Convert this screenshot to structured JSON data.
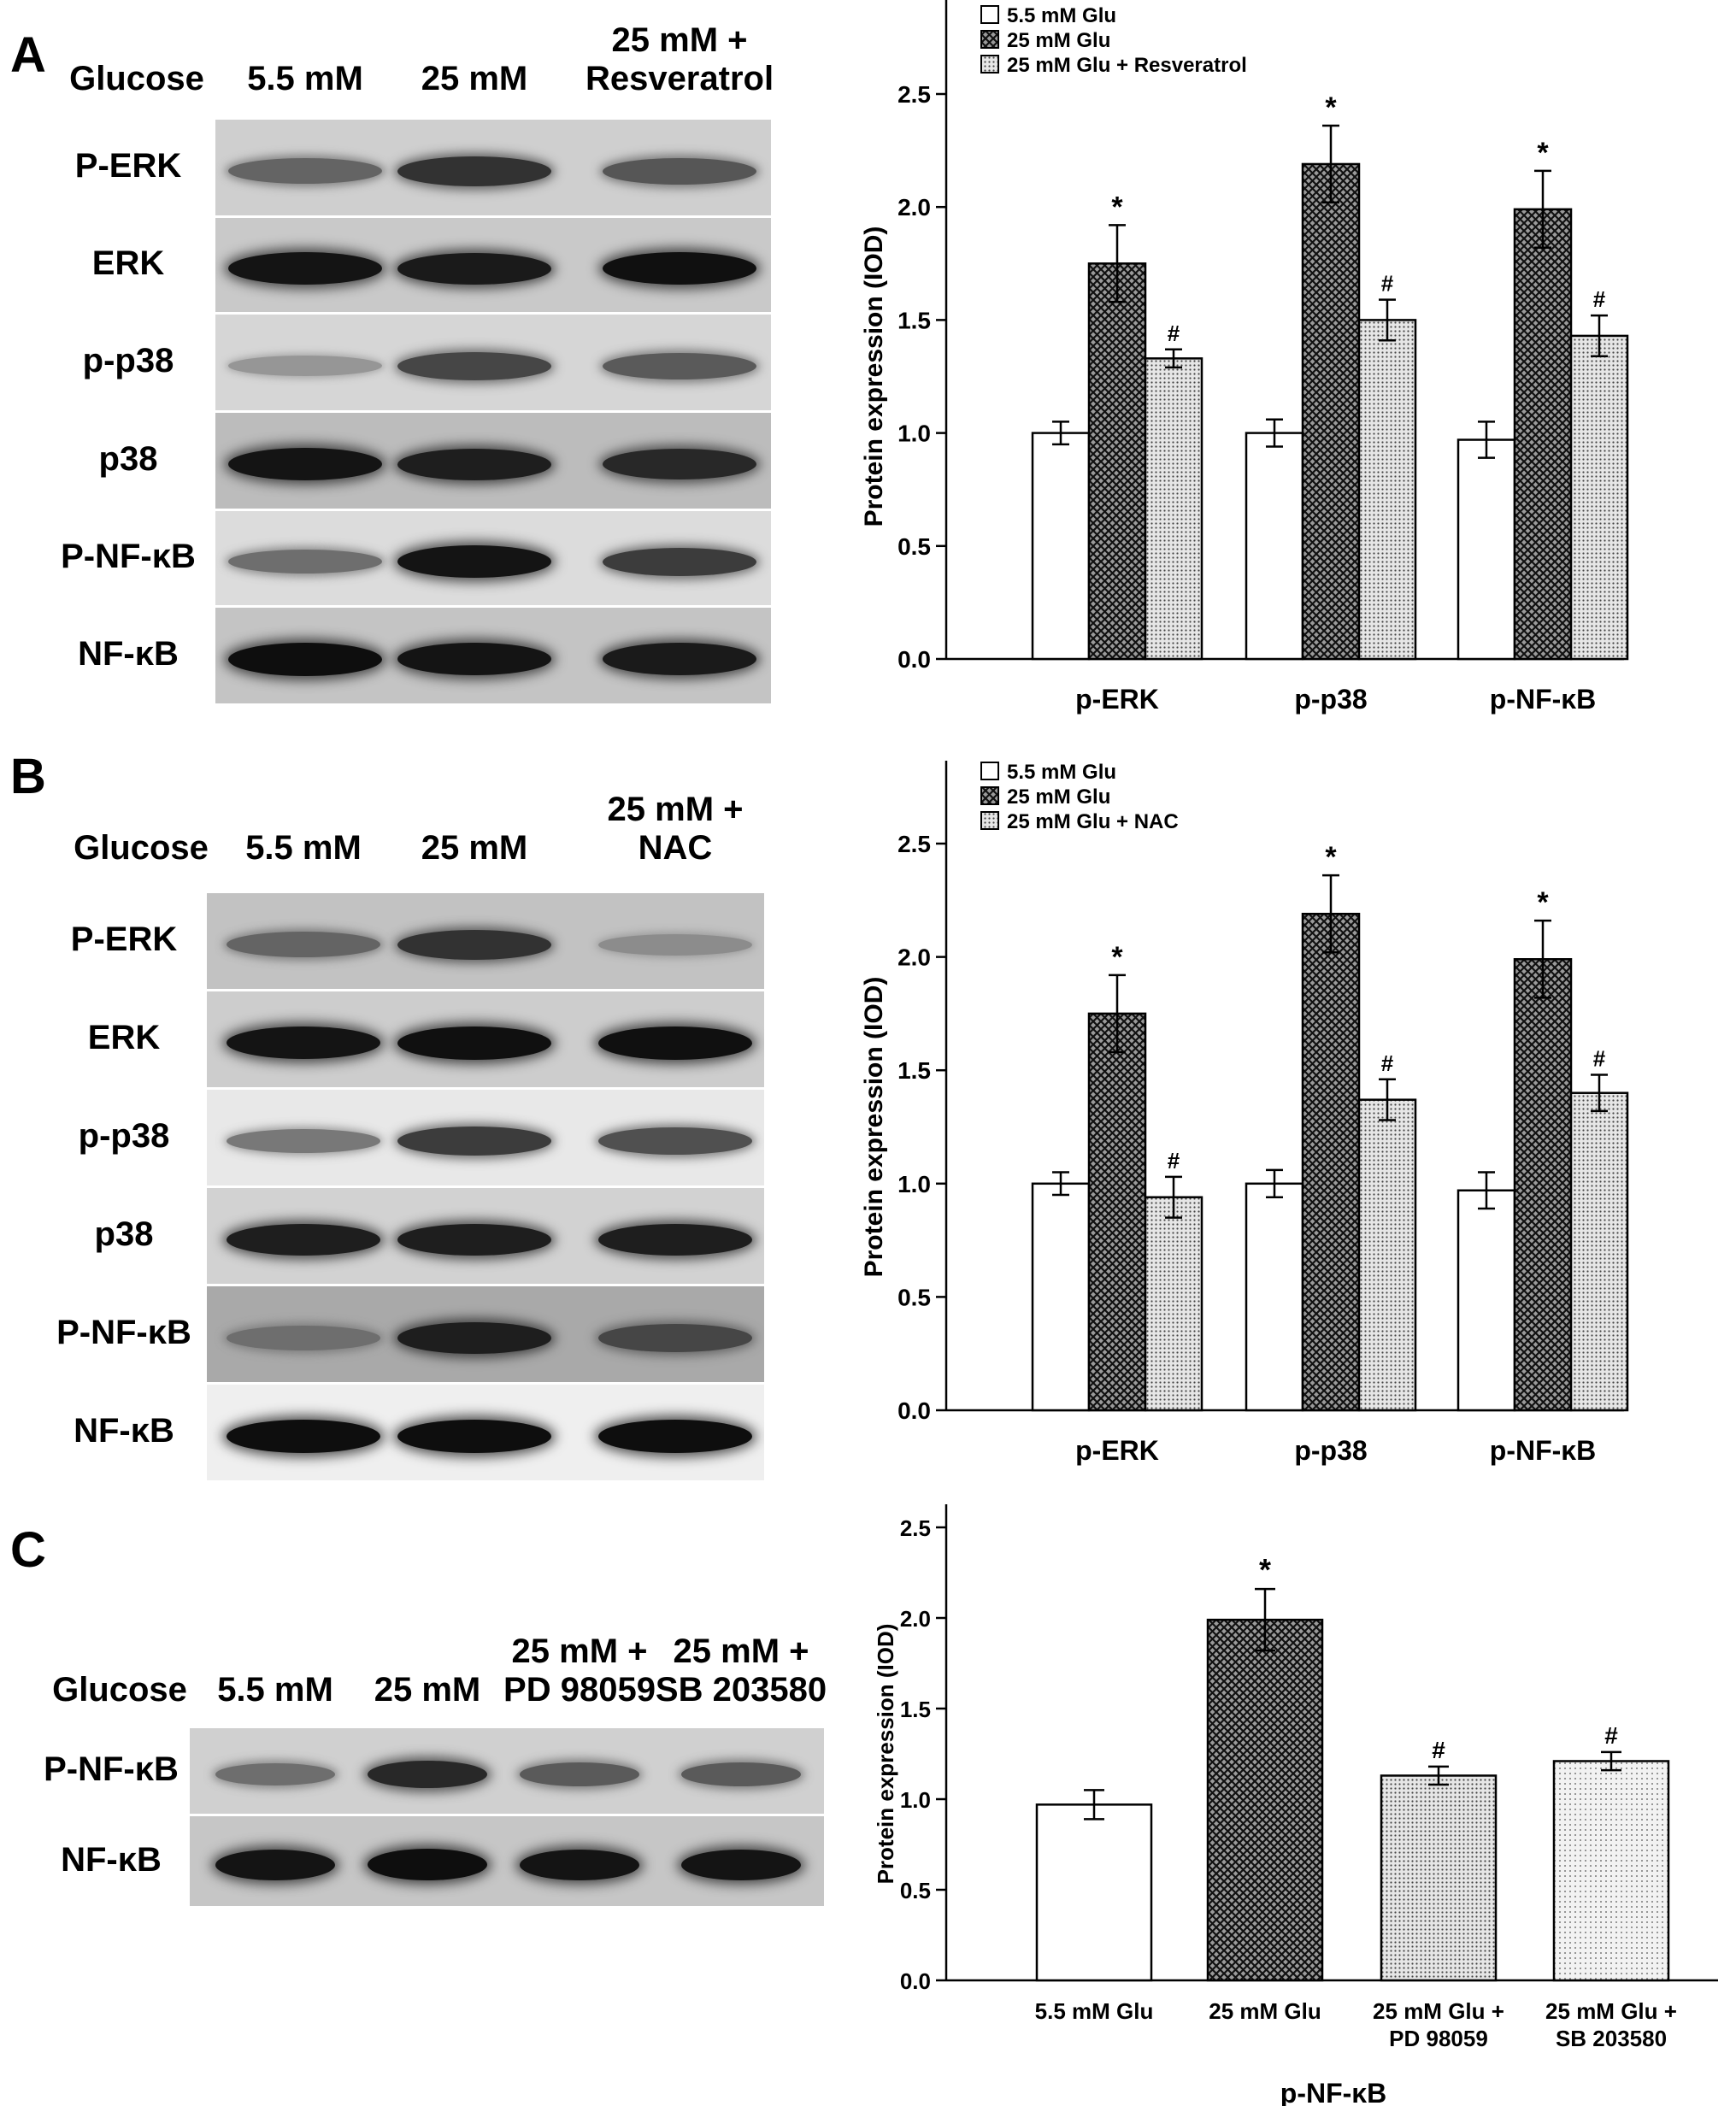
{
  "panels": [
    {
      "letter": "A",
      "blot": {
        "column_header": "Glucose",
        "columns": [
          "5.5 mM",
          "25 mM",
          "25 mM +\nResveratrol"
        ],
        "rows": [
          {
            "label": "P-ERK",
            "bg": "#cfcfcf",
            "intensity": [
              0.55,
              0.8,
              0.62
            ]
          },
          {
            "label": "ERK",
            "bg": "#c9c9c9",
            "intensity": [
              0.95,
              0.92,
              0.97
            ]
          },
          {
            "label": "p-p38",
            "bg": "#d6d6d6",
            "intensity": [
              0.3,
              0.7,
              0.6
            ]
          },
          {
            "label": "p38",
            "bg": "#bcbcbc",
            "intensity": [
              0.95,
              0.9,
              0.85
            ]
          },
          {
            "label": "P-NF-κB",
            "bg": "#dcdcdc",
            "intensity": [
              0.5,
              0.95,
              0.75
            ]
          },
          {
            "label": "NF-κB",
            "bg": "#c4c4c4",
            "intensity": [
              0.98,
              0.95,
              0.92
            ]
          }
        ]
      },
      "chart_data": {
        "type": "bar",
        "ylabel": "Protein expression (IOD)",
        "ylim": [
          0,
          2.5
        ],
        "yticks": [
          "0.0",
          "0.5",
          "1.0",
          "1.5",
          "2.0",
          "2.5"
        ],
        "categories": [
          "p-ERK",
          "p-p38",
          "p-NF-κB"
        ],
        "legend_position": "top-left",
        "series": [
          {
            "name": "5.5 mM Glu",
            "pattern": "white",
            "values": [
              1.0,
              1.0,
              0.97
            ],
            "errors": [
              0.05,
              0.06,
              0.08
            ],
            "annotations": [
              "",
              "",
              ""
            ]
          },
          {
            "name": "25 mM Glu",
            "pattern": "cross",
            "values": [
              1.75,
              2.19,
              1.99
            ],
            "errors": [
              0.17,
              0.17,
              0.17
            ],
            "annotations": [
              "*",
              "*",
              "*"
            ]
          },
          {
            "name": "25 mM Glu + Resveratrol",
            "pattern": "dots",
            "values": [
              1.33,
              1.5,
              1.43
            ],
            "errors": [
              0.04,
              0.09,
              0.09
            ],
            "annotations": [
              "#",
              "#",
              "#"
            ]
          }
        ]
      }
    },
    {
      "letter": "B",
      "blot": {
        "column_header": "Glucose",
        "columns": [
          "5.5 mM",
          "25 mM",
          "25 mM +\nNAC"
        ],
        "rows": [
          {
            "label": "P-ERK",
            "bg": "#c2c2c2",
            "intensity": [
              0.55,
              0.8,
              0.35
            ]
          },
          {
            "label": "ERK",
            "bg": "#cdcdcd",
            "intensity": [
              0.95,
              0.97,
              0.97
            ]
          },
          {
            "label": "p-p38",
            "bg": "#e8e8e8",
            "intensity": [
              0.45,
              0.75,
              0.65
            ]
          },
          {
            "label": "p38",
            "bg": "#d2d2d2",
            "intensity": [
              0.9,
              0.9,
              0.9
            ]
          },
          {
            "label": "P-NF-κB",
            "bg": "#a9a9a9",
            "intensity": [
              0.5,
              0.9,
              0.7
            ]
          },
          {
            "label": "NF-κB",
            "bg": "#efefef",
            "intensity": [
              0.98,
              0.98,
              0.98
            ]
          }
        ]
      },
      "chart_data": {
        "type": "bar",
        "ylabel": "Protein expression (IOD)",
        "ylim": [
          0,
          2.5
        ],
        "yticks": [
          "0.0",
          "0.5",
          "1.0",
          "1.5",
          "2.0",
          "2.5"
        ],
        "categories": [
          "p-ERK",
          "p-p38",
          "p-NF-κB"
        ],
        "legend_position": "top-left",
        "series": [
          {
            "name": "5.5 mM Glu",
            "pattern": "white",
            "values": [
              1.0,
              1.0,
              0.97
            ],
            "errors": [
              0.05,
              0.06,
              0.08
            ],
            "annotations": [
              "",
              "",
              ""
            ]
          },
          {
            "name": "25 mM Glu",
            "pattern": "cross",
            "values": [
              1.75,
              2.19,
              1.99
            ],
            "errors": [
              0.17,
              0.17,
              0.17
            ],
            "annotations": [
              "*",
              "*",
              "*"
            ]
          },
          {
            "name": "25 mM Glu + NAC",
            "pattern": "dots",
            "values": [
              0.94,
              1.37,
              1.4
            ],
            "errors": [
              0.09,
              0.09,
              0.08
            ],
            "annotations": [
              "#",
              "#",
              "#"
            ]
          }
        ]
      }
    },
    {
      "letter": "C",
      "blot": {
        "column_header": "Glucose",
        "columns": [
          "5.5 mM",
          "25 mM",
          "25 mM +\nPD 98059",
          "25 mM +\nSB 203580"
        ],
        "rows": [
          {
            "label": "P-NF-κB",
            "bg": "#d0d0d0",
            "intensity": [
              0.5,
              0.85,
              0.6,
              0.6
            ]
          },
          {
            "label": "NF-κB",
            "bg": "#c6c6c6",
            "intensity": [
              0.95,
              0.98,
              0.95,
              0.95
            ]
          }
        ]
      },
      "chart_data": {
        "type": "bar",
        "ylabel": "Protein expression (IOD)",
        "xlabel": "p-NF-κB",
        "ylim": [
          0,
          2.5
        ],
        "yticks": [
          "0.0",
          "0.5",
          "1.0",
          "1.5",
          "2.0",
          "2.5"
        ],
        "categories": [
          "5.5 mM Glu",
          "25 mM Glu",
          "25 mM Glu +\nPD 98059",
          "25 mM Glu +\nSB 203580"
        ],
        "values": [
          0.97,
          1.99,
          1.13,
          1.21
        ],
        "errors": [
          0.08,
          0.17,
          0.05,
          0.05
        ],
        "patterns": [
          "white",
          "cross",
          "dots",
          "finedots"
        ],
        "annotations": [
          "",
          "*",
          "#",
          "#"
        ]
      }
    }
  ]
}
